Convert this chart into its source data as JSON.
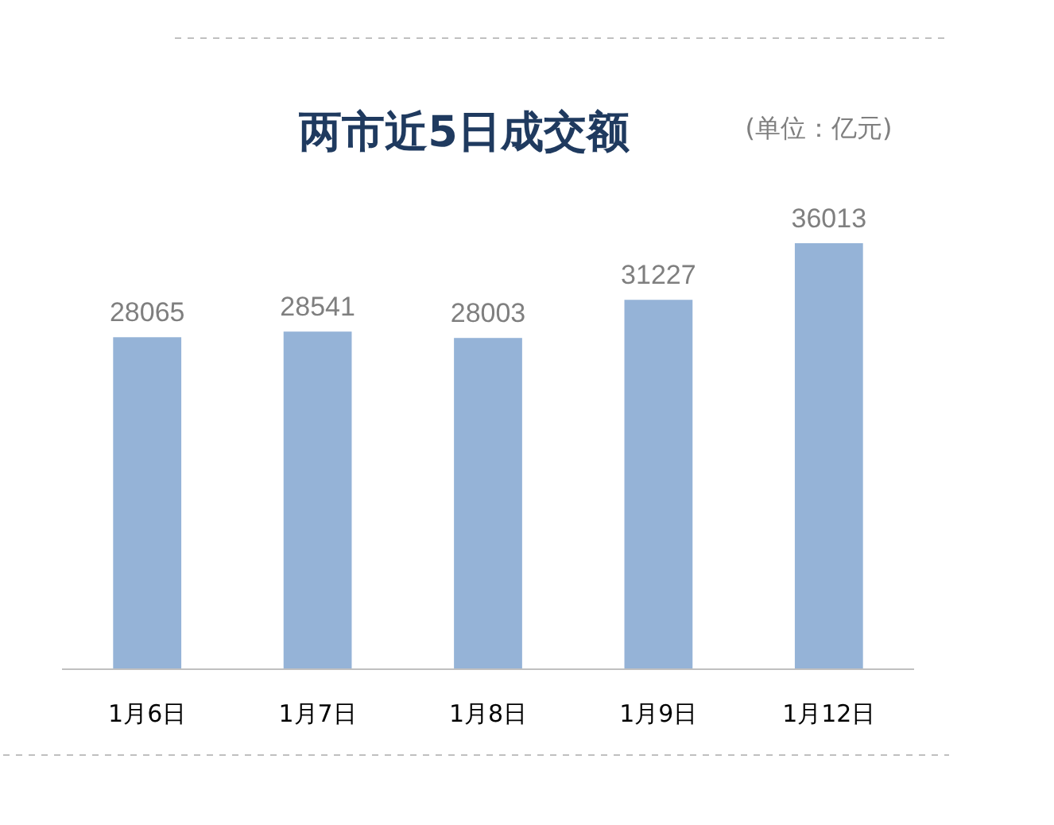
{
  "chart_data": {
    "type": "bar",
    "title": "两市近5日成交额",
    "subtitle": "(单位：亿元)",
    "categories": [
      "1月6日",
      "1月7日",
      "1月8日",
      "1月9日",
      "1月12日"
    ],
    "values": [
      28065,
      28541,
      28003,
      31227,
      36013
    ],
    "color": "#95b3d7",
    "data_labels": true
  }
}
